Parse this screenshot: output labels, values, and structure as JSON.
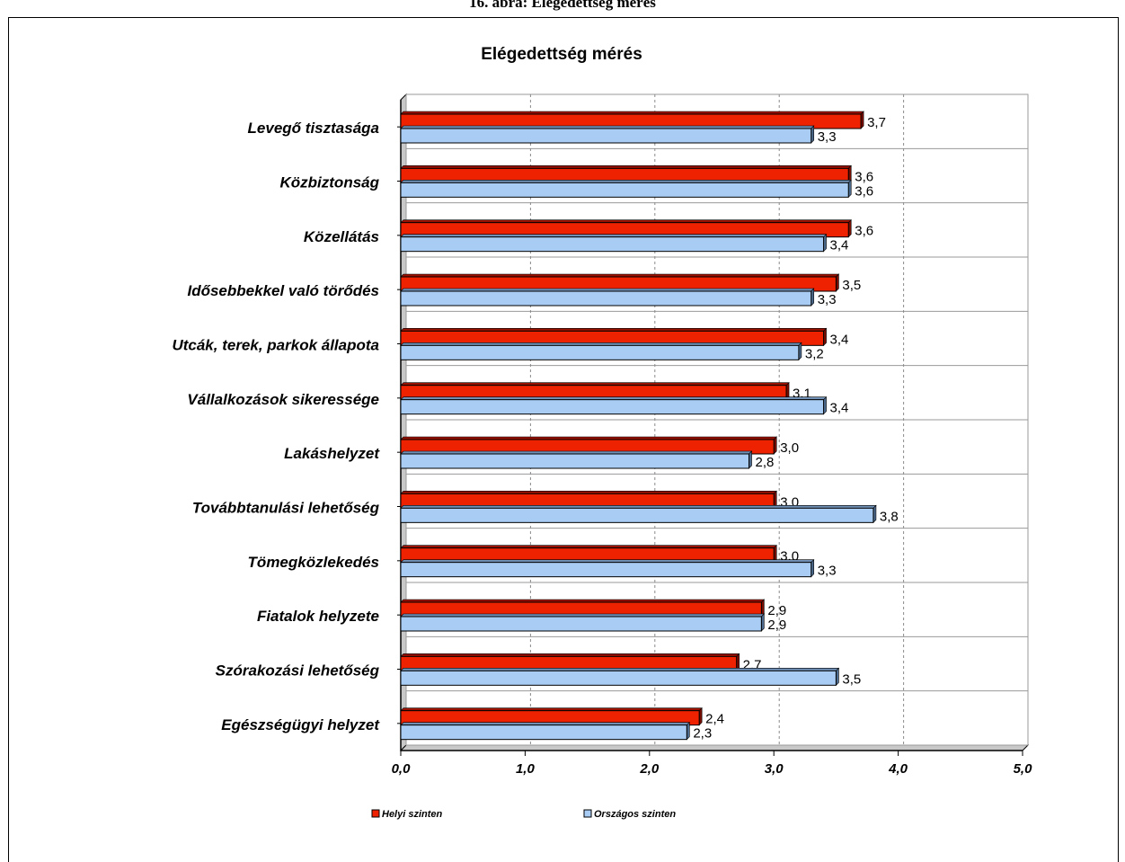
{
  "caption": "16. ábra: Elégedettség mérés",
  "chart_data": {
    "type": "bar",
    "orientation": "horizontal",
    "title": "Elégedettség mérés",
    "xlabel": "",
    "ylabel": "",
    "xlim": [
      0,
      5
    ],
    "x_ticks": [
      "0,0",
      "1,0",
      "2,0",
      "3,0",
      "4,0",
      "5,0"
    ],
    "grid": true,
    "legend_position": "bottom",
    "categories": [
      "Levegő tisztasága",
      "Közbiztonság",
      "Közellátás",
      "Idősebbekkel való törődés",
      "Utcák, terek, parkok állapota",
      "Vállalkozások sikeressége",
      "Lakáshelyzet",
      "Továbbtanulási lehetőség",
      "Tömegközlekedés",
      "Fiatalok helyzete",
      "Szórakozási lehetőség",
      "Egészségügyi helyzet"
    ],
    "series": [
      {
        "name": "Helyi szinten",
        "color": "#ee2200",
        "values": [
          3.7,
          3.6,
          3.6,
          3.5,
          3.4,
          3.1,
          3.0,
          3.0,
          3.0,
          2.9,
          2.7,
          2.4
        ],
        "labels": [
          "3,7",
          "3,6",
          "3,6",
          "3,5",
          "3,4",
          "3,1",
          "3,0",
          "3,0",
          "3,0",
          "2,9",
          "2,7",
          "2,4"
        ]
      },
      {
        "name": "Országos szinten",
        "color": "#a8ccf4",
        "values": [
          3.3,
          3.6,
          3.4,
          3.3,
          3.2,
          3.4,
          2.8,
          3.8,
          3.3,
          2.9,
          3.5,
          2.3
        ],
        "labels": [
          "3,3",
          "3,6",
          "3,4",
          "3,3",
          "3,2",
          "3,4",
          "2,8",
          "3,8",
          "3,3",
          "2,9",
          "3,5",
          "2,3"
        ]
      }
    ]
  }
}
